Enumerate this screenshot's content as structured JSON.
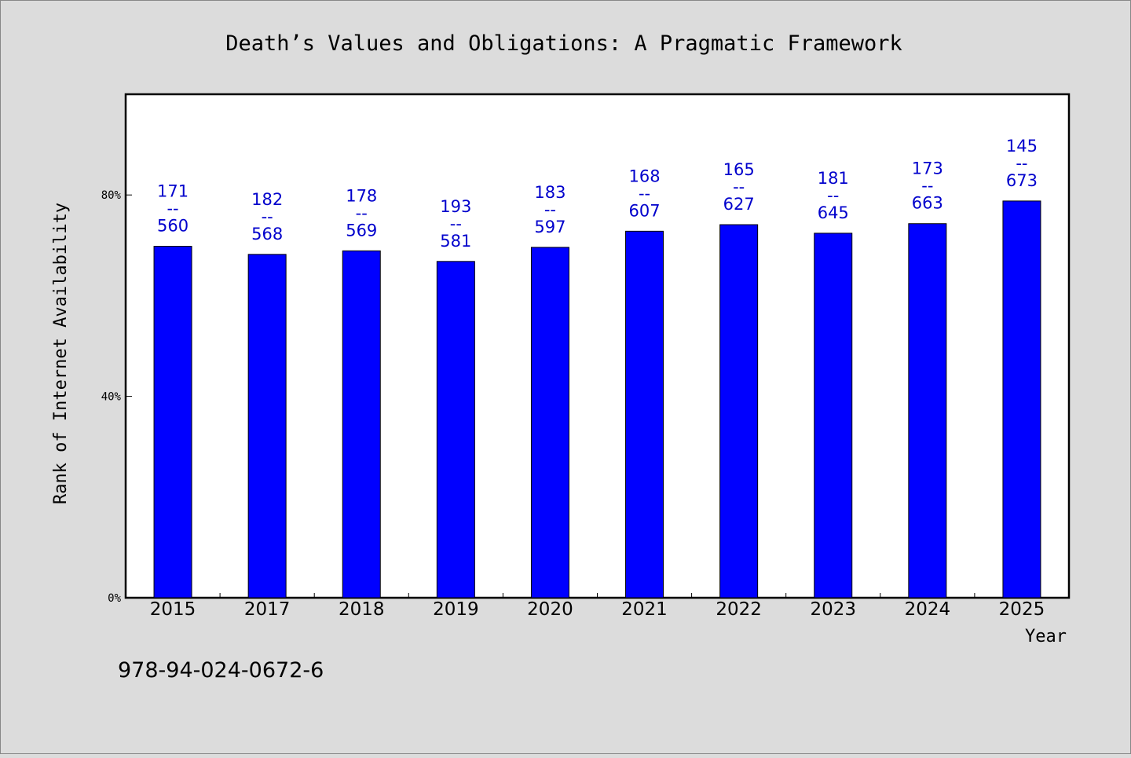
{
  "chart_data": {
    "type": "bar",
    "title": "Death’s Values and Obligations: A Pragmatic Framework",
    "xlabel": "Year",
    "ylabel": "Rank of Internet Availability",
    "categories": [
      "2015",
      "2017",
      "2018",
      "2019",
      "2020",
      "2021",
      "2022",
      "2023",
      "2024",
      "2025"
    ],
    "values": [
      69.8,
      68.2,
      68.9,
      66.8,
      69.6,
      72.8,
      74.1,
      72.4,
      74.3,
      78.8
    ],
    "labels_top": [
      "171",
      "182",
      "178",
      "193",
      "183",
      "168",
      "165",
      "181",
      "173",
      "145"
    ],
    "labels_sep": "--",
    "labels_bottom": [
      "560",
      "568",
      "569",
      "581",
      "597",
      "607",
      "627",
      "645",
      "663",
      "673"
    ],
    "yticks": [
      "0%",
      "40%",
      "80%"
    ],
    "ytick_values": [
      0,
      40,
      80
    ],
    "ylim": [
      0,
      100
    ],
    "grid": false,
    "bar_color": "#0000ff",
    "label_color": "#0000cc",
    "background": "#dcdcdc",
    "plot_background": "#ffffff"
  },
  "footer": {
    "isbn": "978-94-024-0672-6"
  }
}
